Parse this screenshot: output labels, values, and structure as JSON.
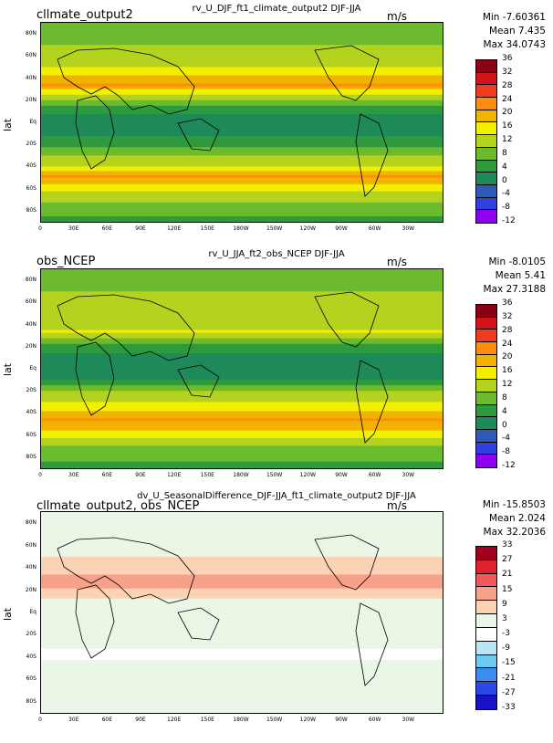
{
  "chart_data": [
    {
      "type": "heatmap",
      "panel_label": "cllmate_output2",
      "title": "rv_U_DJF_ft1_climate_output2  DJF-JJA",
      "units": "m/s",
      "ylabel": "lat",
      "stats": {
        "min": "Min -7.60361",
        "mean": "Mean 7.435",
        "max": "Max 34.0743"
      },
      "y_ticks": [
        "80N",
        "60N",
        "40N",
        "20N",
        "Eq",
        "20S",
        "40S",
        "60S",
        "80S"
      ],
      "x_ticks": [
        "0",
        "30E",
        "60E",
        "90E",
        "120E",
        "150E",
        "180W",
        "150W",
        "120W",
        "90W",
        "60W",
        "30W"
      ],
      "colorbar_levels": [
        "36",
        "32",
        "28",
        "24",
        "20",
        "16",
        "12",
        "8",
        "4",
        "0",
        "-4",
        "-8",
        "-12"
      ],
      "colorbar_colors": [
        "#8b0012",
        "#d4121a",
        "#f23a1e",
        "#ff8c0a",
        "#f0b400",
        "#f2f000",
        "#b5d21e",
        "#6cbb2e",
        "#2e9a3e",
        "#1e8a5a",
        "#2f5ab8",
        "#3340e0",
        "#9000f0"
      ],
      "bands": [
        {
          "lat": 90,
          "value": 4
        },
        {
          "lat": 70,
          "value": 8
        },
        {
          "lat": 50,
          "value": 12
        },
        {
          "lat": 35,
          "value": 20
        },
        {
          "lat": 20,
          "value": 6
        },
        {
          "lat": 5,
          "value": -2
        },
        {
          "lat": -10,
          "value": -1
        },
        {
          "lat": -25,
          "value": 6
        },
        {
          "lat": -40,
          "value": 12
        },
        {
          "lat": -48,
          "value": 20
        },
        {
          "lat": -60,
          "value": 12
        },
        {
          "lat": -75,
          "value": 6
        },
        {
          "lat": -90,
          "value": 2
        }
      ]
    },
    {
      "type": "heatmap",
      "panel_label": "obs_NCEP",
      "title": "rv_U_JJA_ft2_obs_NCEP  DJF-JJA",
      "units": "m/s",
      "ylabel": "lat",
      "stats": {
        "min": "Min -8.0105",
        "mean": "Mean 5.41",
        "max": "Max 27.3188"
      },
      "y_ticks": [
        "80N",
        "60N",
        "40N",
        "20N",
        "Eq",
        "20S",
        "40S",
        "60S",
        "80S"
      ],
      "x_ticks": [
        "0",
        "30E",
        "60E",
        "90E",
        "120E",
        "150E",
        "180W",
        "150W",
        "120W",
        "90W",
        "60W",
        "30W"
      ],
      "colorbar_levels": [
        "36",
        "32",
        "28",
        "24",
        "20",
        "16",
        "12",
        "8",
        "4",
        "0",
        "-4",
        "-8",
        "-12"
      ],
      "colorbar_colors": [
        "#8b0012",
        "#d4121a",
        "#f23a1e",
        "#ff8c0a",
        "#f0b400",
        "#f2f000",
        "#b5d21e",
        "#6cbb2e",
        "#2e9a3e",
        "#1e8a5a",
        "#2f5ab8",
        "#3340e0",
        "#9000f0"
      ],
      "bands": [
        {
          "lat": 90,
          "value": 4
        },
        {
          "lat": 70,
          "value": 8
        },
        {
          "lat": 50,
          "value": 10
        },
        {
          "lat": 35,
          "value": 12
        },
        {
          "lat": 20,
          "value": 2
        },
        {
          "lat": 8,
          "value": -3
        },
        {
          "lat": -5,
          "value": -3
        },
        {
          "lat": -20,
          "value": 8
        },
        {
          "lat": -35,
          "value": 14
        },
        {
          "lat": -45,
          "value": 20
        },
        {
          "lat": -58,
          "value": 14
        },
        {
          "lat": -72,
          "value": 6
        },
        {
          "lat": -90,
          "value": 2
        }
      ]
    },
    {
      "type": "heatmap",
      "panel_label": "cllmate_output2, obs_NCEP",
      "title": "dv_U_SeasonalDifference_DJF-JJA_ft1_climate_output2  DJF-JJA",
      "units": "m/s",
      "ylabel": "lat",
      "stats": {
        "min": "Min -15.8503",
        "mean": "Mean 2.024",
        "max": "Max 32.2036"
      },
      "y_ticks": [
        "80N",
        "60N",
        "40N",
        "20N",
        "Eq",
        "20S",
        "40S",
        "60S",
        "80S"
      ],
      "x_ticks": [
        "0",
        "30E",
        "60E",
        "90E",
        "120E",
        "150E",
        "180W",
        "150W",
        "120W",
        "90W",
        "60W",
        "30W"
      ],
      "colorbar_levels": [
        "33",
        "27",
        "21",
        "15",
        "9",
        "3",
        "-3",
        "-9",
        "-15",
        "-21",
        "-27",
        "-33"
      ],
      "colorbar_colors": [
        "#a0001e",
        "#e0202e",
        "#f25a5a",
        "#f7a08a",
        "#fcd2b4",
        "#eaf7e6",
        "#ffffff",
        "#b8e6f7",
        "#6ccbf2",
        "#3c8cf0",
        "#2a48e6",
        "#1a10c8"
      ],
      "bands": [
        {
          "lat": 90,
          "value": 0
        },
        {
          "lat": 60,
          "value": 1
        },
        {
          "lat": 40,
          "value": 6
        },
        {
          "lat": 28,
          "value": 12
        },
        {
          "lat": 15,
          "value": 3
        },
        {
          "lat": 0,
          "value": 1
        },
        {
          "lat": -20,
          "value": 0
        },
        {
          "lat": -35,
          "value": -4
        },
        {
          "lat": -50,
          "value": -2
        },
        {
          "lat": -70,
          "value": 0
        },
        {
          "lat": -90,
          "value": 0
        }
      ]
    }
  ]
}
